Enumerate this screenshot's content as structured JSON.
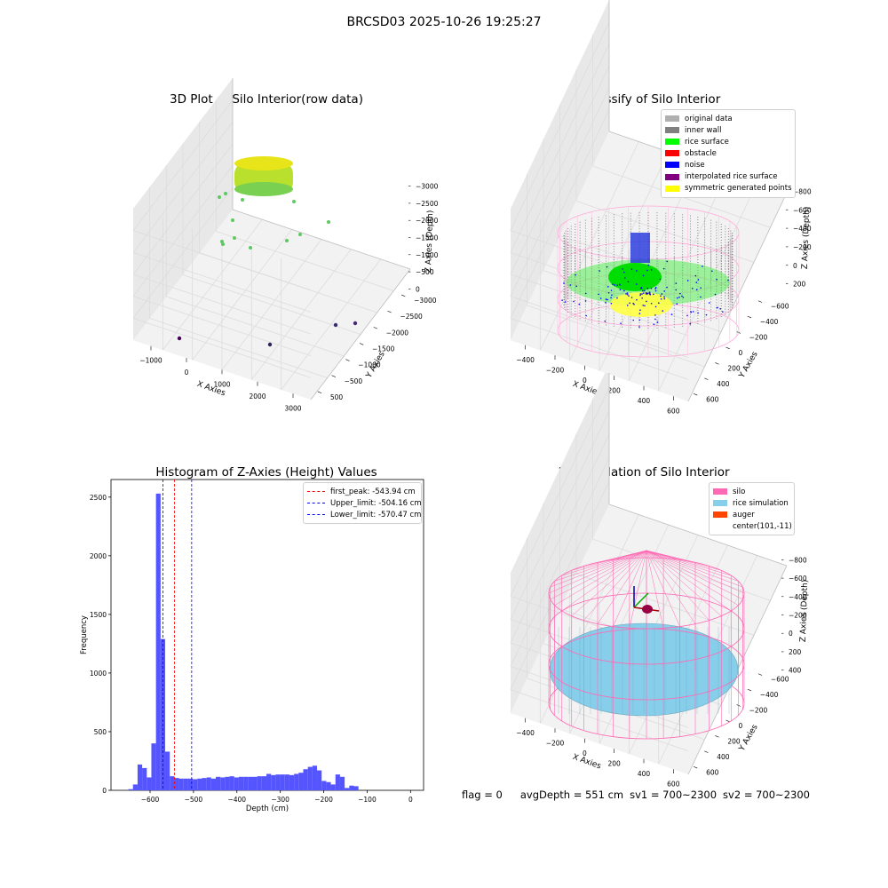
{
  "suptitle": "BRCSD03 2025-10-26 19:25:27",
  "colors": {
    "hist_bar": "#5555ff",
    "peak_line": "#ff0000",
    "limit_line": "#0000ff",
    "pane": "#f2f2f2",
    "grid": "#dcdcdc",
    "silo": "#ff69b4",
    "rice_sim": "#87ceeb",
    "auger": "#ff4500"
  },
  "panel1": {
    "title": "3D Plot of Silo Interior(row data)",
    "xlabel": "X Axies",
    "ylabel": "Y Axies",
    "zlabel": "Z Axies (Depth)",
    "xticks": [
      "−1000",
      "0",
      "1000",
      "2000",
      "3000"
    ],
    "yticks": [
      "500",
      "−500",
      "−1000",
      "−1500",
      "−2000",
      "−2500",
      "−3000"
    ],
    "zticks": [
      "0",
      "−500",
      "−1000",
      "−1500",
      "−2000",
      "−2500",
      "−3000"
    ]
  },
  "panel2": {
    "title": "3D classify of Silo Interior",
    "xlabel": "X Axies",
    "ylabel": "Y Axies",
    "zlabel": "Z Axies (Depth)",
    "xticks": [
      "−400",
      "−200",
      "0",
      "200",
      "400",
      "600"
    ],
    "yticks": [
      "600",
      "400",
      "200",
      "0",
      "−200",
      "−400",
      "−600"
    ],
    "zticks": [
      "200",
      "0",
      "−200",
      "−400",
      "−600",
      "−800"
    ],
    "legend": [
      {
        "label": "original data",
        "color": "#b0b0b0"
      },
      {
        "label": "inner wall",
        "color": "#808080"
      },
      {
        "label": "rice surface",
        "color": "#00ff00"
      },
      {
        "label": "obstacle",
        "color": "#ff0000"
      },
      {
        "label": "noise",
        "color": "#0000ff"
      },
      {
        "label": "interpolated rice surface",
        "color": "#800080"
      },
      {
        "label": "symmetric generated points",
        "color": "#ffff00"
      }
    ]
  },
  "panel4": {
    "title": "3D simulation of Silo Interior",
    "xlabel": "X Axies",
    "ylabel": "Y Axies",
    "zlabel": "Z Axies (Depth)",
    "xticks": [
      "−400",
      "−200",
      "0",
      "200",
      "400",
      "600"
    ],
    "yticks": [
      "600",
      "400",
      "200",
      "0",
      "−200",
      "−400",
      "−600"
    ],
    "zticks": [
      "400",
      "200",
      "0",
      "−200",
      "−400",
      "−600",
      "−800"
    ],
    "legend": [
      {
        "label": "silo",
        "color": "#ff69b4"
      },
      {
        "label": "rice simulation",
        "color": "#87ceeb"
      },
      {
        "label": "auger",
        "color": "#ff4500"
      },
      {
        "label": "center(101,-11)",
        "color": ""
      }
    ]
  },
  "status": {
    "flag": "flag = 0",
    "avg_depth": "avgDepth = 551 cm",
    "sv1": "sv1 = 700~2300",
    "sv2": "sv2 = 700~2300"
  },
  "chart_data": [
    {
      "type": "scatter",
      "title": "3D Plot of Silo Interior(row data)",
      "xlabel": "X Axies",
      "ylabel": "Y Axies",
      "zlabel": "Z Axies (Depth)",
      "xlim": [
        -1300,
        3400
      ],
      "ylim": [
        -3300,
        700
      ],
      "zlim": [
        -3300,
        200
      ]
    },
    {
      "type": "scatter",
      "title": "3D classify of Silo Interior",
      "xlabel": "X Axies",
      "ylabel": "Y Axies",
      "zlabel": "Z Axies (Depth)",
      "xlim": [
        -550,
        750
      ],
      "ylim": [
        -650,
        700
      ],
      "zlim": [
        -900,
        300
      ]
    },
    {
      "type": "bar",
      "title": "Histogram of Z-Axies (Height) Values",
      "xlabel": "Depth (cm)",
      "ylabel": "Frequency",
      "xlim": [
        -690,
        30
      ],
      "ylim": [
        0,
        2650
      ],
      "xticks": [
        -600,
        -500,
        -400,
        -300,
        -200,
        -100,
        0
      ],
      "yticks": [
        0,
        500,
        1000,
        1500,
        2000,
        2500
      ],
      "bin_width": 10.6,
      "bin_start": -650,
      "values": [
        10,
        50,
        220,
        190,
        110,
        400,
        2530,
        1290,
        330,
        120,
        105,
        100,
        100,
        100,
        95,
        100,
        105,
        110,
        100,
        115,
        110,
        115,
        120,
        110,
        115,
        115,
        115,
        115,
        120,
        120,
        140,
        130,
        135,
        135,
        135,
        130,
        140,
        150,
        180,
        200,
        210,
        170,
        80,
        70,
        50,
        135,
        115,
        20,
        40,
        35
      ],
      "lines": [
        {
          "label": "first_peak: -543.94 cm",
          "x": -543.94,
          "color": "#ff0000"
        },
        {
          "label": "Upper_limit: -504.16 cm",
          "x": -504.16,
          "color": "#0000ff"
        },
        {
          "label": "Lower_limit: -570.47 cm",
          "x": -570.47,
          "color": "#0000ff"
        }
      ]
    },
    {
      "type": "scatter",
      "title": "3D simulation of Silo Interior",
      "xlabel": "X Axies",
      "ylabel": "Y Axies",
      "zlabel": "Z Axies (Depth)",
      "xlim": [
        -550,
        750
      ],
      "ylim": [
        -650,
        700
      ],
      "zlim": [
        -950,
        500
      ],
      "series": [
        {
          "name": "silo",
          "color": "#ff69b4"
        },
        {
          "name": "rice simulation",
          "color": "#87ceeb"
        },
        {
          "name": "auger",
          "color": "#ff4500"
        },
        {
          "name": "center(101,-11)",
          "x": 101,
          "y": -11
        }
      ]
    }
  ]
}
